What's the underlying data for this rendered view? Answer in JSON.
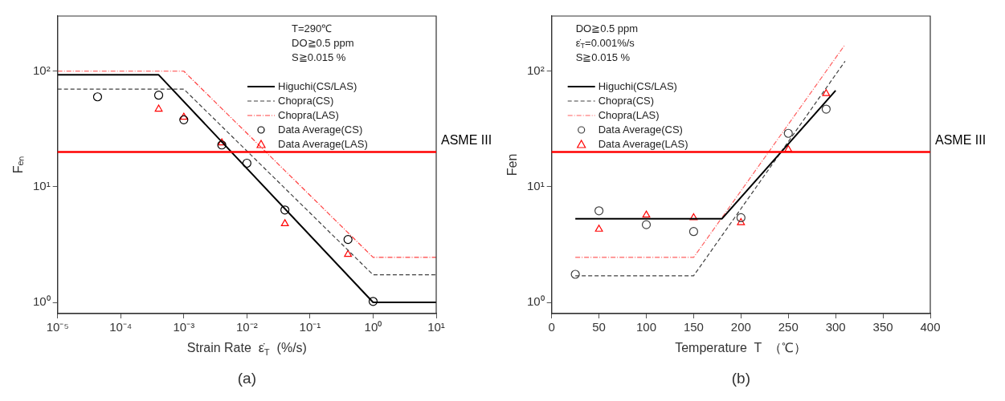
{
  "chart_data": [
    {
      "type": "line",
      "title": "(a)",
      "xlabel": "Strain Rate  ε̇$_{T}$  (%/s)",
      "ylabel": "Fₑₙ",
      "log": "xy",
      "grid": false,
      "legend": "top right",
      "xlim": [
        1e-05,
        10
      ],
      "ylim": [
        0.8,
        300
      ],
      "xticks": [
        {
          "value": 1e-05,
          "label": "10⁻⁵"
        },
        {
          "value": 0.0001,
          "label": "10⁻⁴"
        },
        {
          "value": 0.001,
          "label": "10⁻³"
        },
        {
          "value": 0.01,
          "label": "10⁻²"
        },
        {
          "value": 0.1,
          "label": "10⁻¹"
        },
        {
          "value": 1,
          "label": "10⁰"
        },
        {
          "value": 10,
          "label": "10¹"
        }
      ],
      "yticks": [
        {
          "value": 1,
          "label": "10⁰"
        },
        {
          "value": 10,
          "label": "10¹"
        },
        {
          "value": 100,
          "label": "10²"
        }
      ],
      "annotations": [
        "T=290℃",
        "DO≧0.5 ppm",
        "S≧0.015 %"
      ],
      "ref_lines": [
        {
          "axis": "y",
          "value": 20,
          "label": "ASME III",
          "color": "#ff0000"
        }
      ],
      "series": [
        {
          "name": "Higuchi(CS/LAS)",
          "type": "line",
          "color": "#000000",
          "line_style": "solid",
          "marker": "none",
          "x": [
            1e-05,
            0.0004,
            1,
            10
          ],
          "values": [
            93,
            93,
            1,
            1
          ]
        },
        {
          "name": "Chopra(CS)",
          "type": "line",
          "color": "#404040",
          "line_style": "dashed",
          "marker": "none",
          "x": [
            1e-05,
            0.001,
            1,
            10
          ],
          "values": [
            70,
            70,
            1.73,
            1.73
          ]
        },
        {
          "name": "Chopra(LAS)",
          "type": "line",
          "color": "#ff4040",
          "line_style": "dotted",
          "marker": "none",
          "x": [
            1e-05,
            0.001,
            1,
            10
          ],
          "values": [
            100,
            100,
            2.45,
            2.45
          ]
        },
        {
          "name": "Data Average(CS)",
          "type": "scatter",
          "color": "#000000",
          "marker": "circle",
          "x": [
            4.3e-05,
            0.0004,
            0.001,
            0.004,
            0.01,
            0.04,
            0.4,
            1
          ],
          "values": [
            60,
            62,
            38,
            23,
            16,
            6.3,
            3.5,
            1.02
          ]
        },
        {
          "name": "Data Average(LAS)",
          "type": "scatter",
          "color": "#ff0000",
          "marker": "triangle",
          "x": [
            0.0004,
            0.001,
            0.004,
            0.04,
            0.4
          ],
          "values": [
            47,
            40,
            24,
            4.8,
            2.6
          ]
        }
      ]
    },
    {
      "type": "line",
      "title": "(b)",
      "xlabel": "Temperature  T  （℃）",
      "ylabel": "Fen",
      "log": "y",
      "grid": false,
      "legend": "top left",
      "xlim": [
        0,
        400
      ],
      "ylim": [
        0.8,
        300
      ],
      "xticks": [
        0,
        50,
        100,
        150,
        200,
        250,
        300,
        350,
        400
      ],
      "yticks": [
        {
          "value": 1,
          "label": "10⁰"
        },
        {
          "value": 10,
          "label": "10¹"
        },
        {
          "value": 100,
          "label": "10²"
        }
      ],
      "annotations": [
        "DO≧0.5 ppm",
        "ε̇$_{T}$=0.001%/s",
        "S≧0.015 %"
      ],
      "ref_lines": [
        {
          "axis": "y",
          "value": 20,
          "label": "ASME III",
          "color": "#ff0000"
        }
      ],
      "series": [
        {
          "name": "Higuchi(CS/LAS)",
          "type": "line",
          "color": "#000000",
          "line_style": "solid",
          "marker": "none",
          "x": [
            25,
            180,
            300
          ],
          "values": [
            5.3,
            5.3,
            68
          ]
        },
        {
          "name": "Chopra(CS)",
          "type": "line",
          "color": "#404040",
          "line_style": "dashed",
          "marker": "none",
          "x": [
            25,
            150,
            310
          ],
          "values": [
            1.7,
            1.7,
            122
          ]
        },
        {
          "name": "Chopra(LAS)",
          "type": "line",
          "color": "#ff6060",
          "line_style": "dotted",
          "marker": "none",
          "x": [
            25,
            150,
            310
          ],
          "values": [
            2.45,
            2.45,
            170
          ]
        },
        {
          "name": "Data Average(CS)",
          "type": "scatter",
          "color": "#404040",
          "marker": "circle",
          "x": [
            25,
            50,
            100,
            150,
            200,
            250,
            290
          ],
          "values": [
            1.75,
            6.2,
            4.7,
            4.1,
            5.4,
            29,
            47
          ]
        },
        {
          "name": "Data Average(LAS)",
          "type": "scatter",
          "color": "#ff0000",
          "marker": "triangle",
          "x": [
            50,
            100,
            150,
            200,
            250,
            290
          ],
          "values": [
            4.3,
            5.7,
            5.4,
            4.9,
            21,
            64
          ]
        }
      ]
    }
  ]
}
